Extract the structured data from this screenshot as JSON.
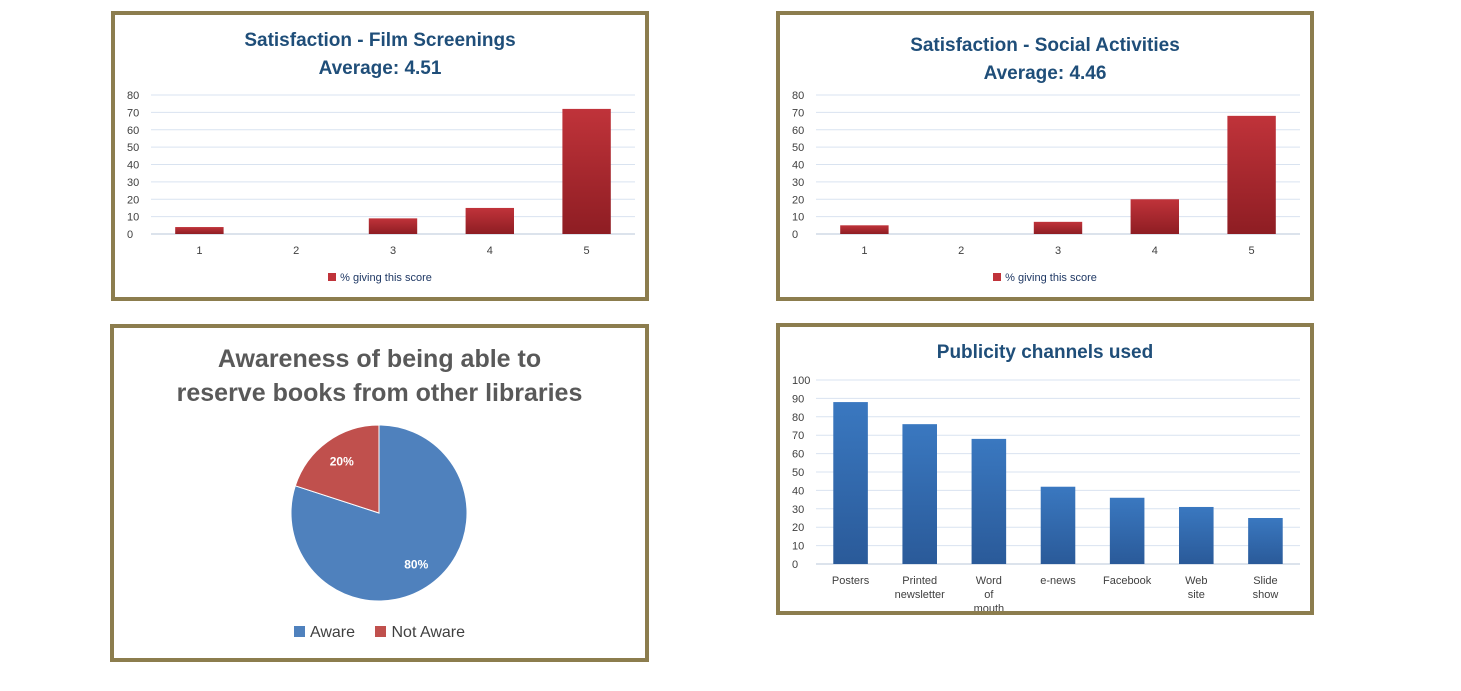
{
  "chart_data": [
    {
      "type": "bar",
      "title": "Satisfaction - Film Screenings",
      "subtitle": "Average: 4.51",
      "categories": [
        "1",
        "2",
        "3",
        "4",
        "5"
      ],
      "series": [
        {
          "name": "% giving this score",
          "values": [
            4,
            0,
            9,
            15,
            72
          ],
          "color": "#c0333a"
        }
      ],
      "ylim": [
        0,
        80
      ],
      "yticks": [
        0,
        10,
        20,
        30,
        40,
        50,
        60,
        70,
        80
      ],
      "grid": true,
      "legend": "bottom"
    },
    {
      "type": "bar",
      "title": "Satisfaction - Social Activities",
      "subtitle": "Average: 4.46",
      "categories": [
        "1",
        "2",
        "3",
        "4",
        "5"
      ],
      "series": [
        {
          "name": "% giving this score",
          "values": [
            5,
            0,
            7,
            20,
            68
          ],
          "color": "#c0333a"
        }
      ],
      "ylim": [
        0,
        80
      ],
      "yticks": [
        0,
        10,
        20,
        30,
        40,
        50,
        60,
        70,
        80
      ],
      "grid": true,
      "legend": "bottom"
    },
    {
      "type": "pie",
      "title": "Awareness of being able to reserve books from other libraries",
      "slices": [
        {
          "name": "Aware",
          "value": 80,
          "label": "80%",
          "color": "#4f81bd"
        },
        {
          "name": "Not Aware",
          "value": 20,
          "label": "20%",
          "color": "#c0504d"
        }
      ],
      "legend": "bottom"
    },
    {
      "type": "bar",
      "title": "Publicity channels used",
      "categories": [
        "Posters",
        "Printed newsletter",
        "Word of mouth",
        "e-news",
        "Facebook",
        "Web site",
        "Slide show"
      ],
      "series": [
        {
          "values": [
            88,
            76,
            68,
            42,
            36,
            31,
            25
          ],
          "color": "#3a78c0"
        }
      ],
      "ylim": [
        0,
        100
      ],
      "yticks": [
        0,
        10,
        20,
        30,
        40,
        50,
        60,
        70,
        80,
        90,
        100
      ],
      "grid": true
    }
  ]
}
